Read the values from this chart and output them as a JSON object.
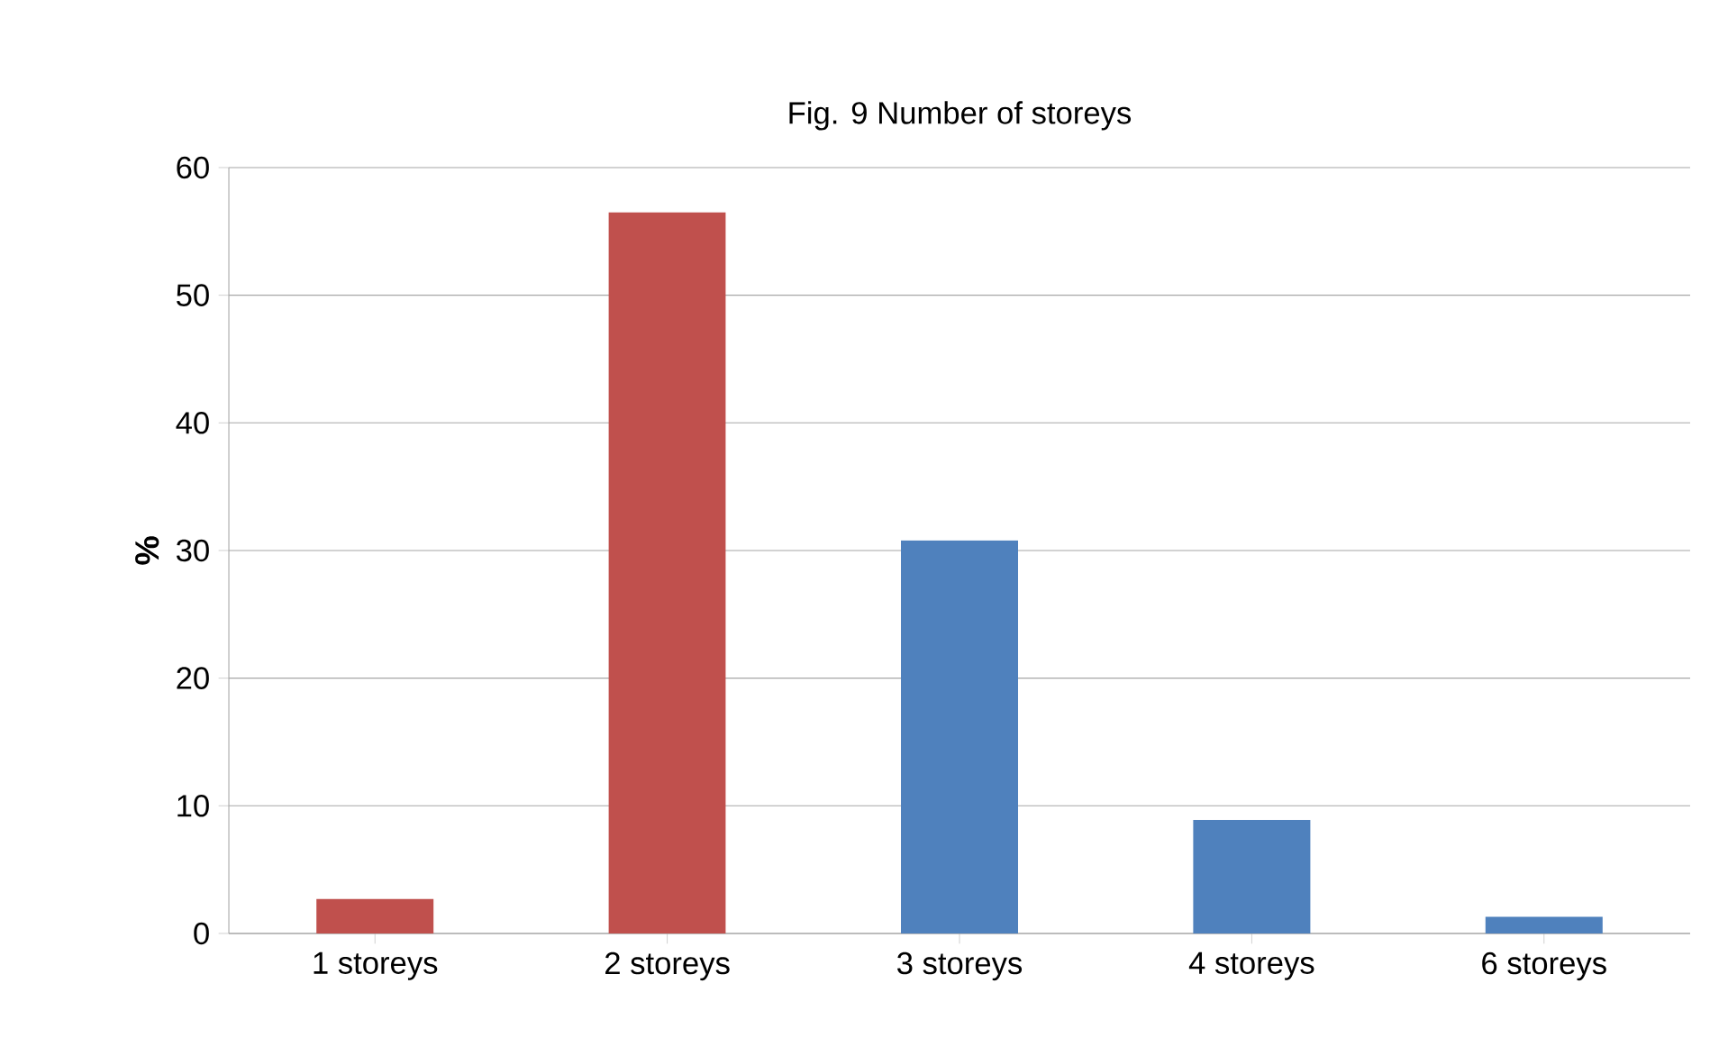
{
  "chart_data": {
    "type": "bar",
    "title": "Fig. 9 Number of storeys",
    "ylabel": "%",
    "categories": [
      "1 storeys",
      "2 storeys",
      "3 storeys",
      "4 storeys",
      "6 storeys"
    ],
    "values": [
      2.7,
      56.5,
      30.8,
      8.9,
      1.3
    ],
    "colors": [
      "#c0504d",
      "#c0504d",
      "#4f81bd",
      "#4f81bd",
      "#4f81bd"
    ],
    "ylim": [
      0,
      60
    ],
    "yticks": [
      0,
      10,
      20,
      30,
      40,
      50,
      60
    ],
    "grid": "y"
  }
}
